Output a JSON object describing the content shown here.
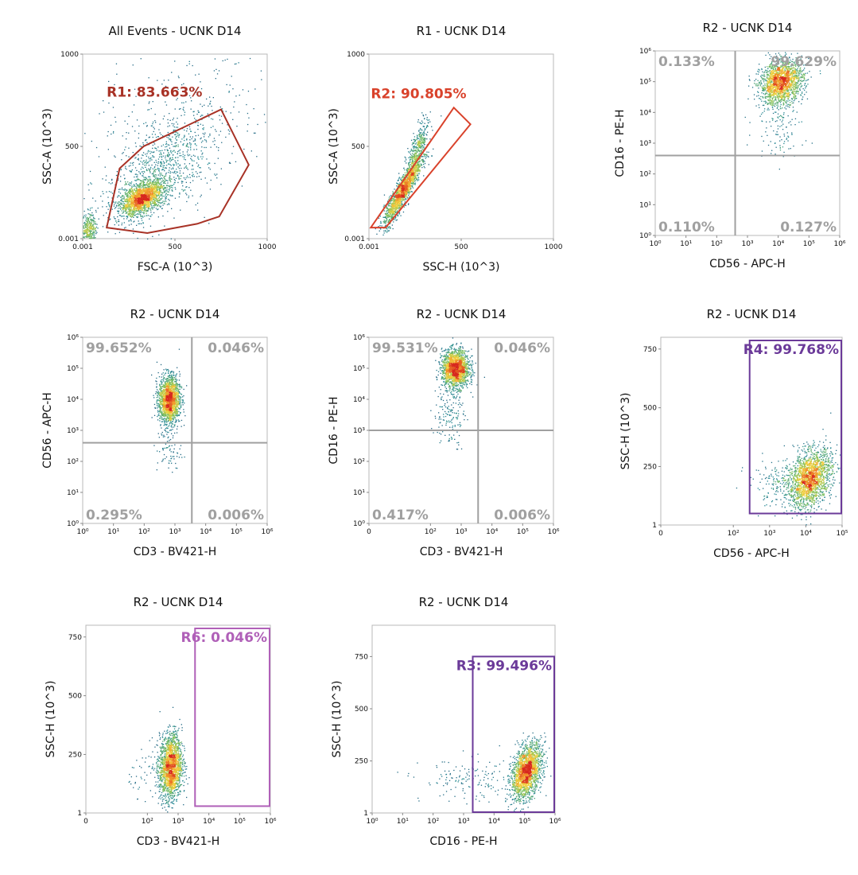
{
  "chart_data": [
    {
      "type": "scatter",
      "title": "All Events - UCNK D14",
      "xlabel": "FSC-A (10^3)",
      "ylabel": "SSC-A (10^3)",
      "xscale": "linear",
      "yscale": "linear",
      "xlim": [
        0.001,
        1000
      ],
      "ylim": [
        0.001,
        1000
      ],
      "xticks": [
        {
          "v": 0.001,
          "label": "0.001"
        },
        {
          "v": 500,
          "label": "500"
        },
        {
          "v": 1000,
          "label": "1000"
        }
      ],
      "yticks": [
        {
          "v": 0.001,
          "label": "0.001"
        },
        {
          "v": 500,
          "label": "500"
        },
        {
          "v": 1000,
          "label": "1000"
        }
      ],
      "clusters": [
        {
          "cx": 320,
          "cy": 220,
          "sx": 60,
          "sy": 45,
          "rho": 0.5,
          "n": 1700
        },
        {
          "cx": 400,
          "cy": 360,
          "sx": 150,
          "sy": 150,
          "rho": 0.6,
          "n": 900
        },
        {
          "cx": 30,
          "cy": 60,
          "sx": 20,
          "sy": 40,
          "rho": 0,
          "n": 300
        },
        {
          "cx": 550,
          "cy": 600,
          "sx": 250,
          "sy": 250,
          "rho": 0.3,
          "n": 350
        }
      ],
      "gates": [
        {
          "shape": "polygon",
          "label": "R1: 83.663%",
          "color": "#a83226",
          "points": [
            [
              130,
              60
            ],
            [
              350,
              30
            ],
            [
              620,
              80
            ],
            [
              740,
              120
            ],
            [
              900,
              400
            ],
            [
              750,
              700
            ],
            [
              330,
              500
            ],
            [
              200,
              380
            ]
          ],
          "label_at": [
            130,
            770
          ]
        }
      ]
    },
    {
      "type": "scatter",
      "title": "R1 - UCNK D14",
      "xlabel": "SSC-H (10^3)",
      "ylabel": "SSC-A (10^3)",
      "xscale": "linear",
      "yscale": "linear",
      "xlim": [
        0.001,
        1000
      ],
      "ylim": [
        0.001,
        1000
      ],
      "xticks": [
        {
          "v": 0.001,
          "label": "0.001"
        },
        {
          "v": 500,
          "label": "500"
        },
        {
          "v": 1000,
          "label": "1000"
        }
      ],
      "yticks": [
        {
          "v": 0.001,
          "label": "0.001"
        },
        {
          "v": 500,
          "label": "500"
        },
        {
          "v": 1000,
          "label": "1000"
        }
      ],
      "clusters": [
        {
          "cx": 180,
          "cy": 260,
          "sx": 50,
          "sy": 90,
          "rho": 0.9,
          "n": 1600
        },
        {
          "cx": 260,
          "cy": 480,
          "sx": 30,
          "sy": 80,
          "rho": 0.7,
          "n": 400
        }
      ],
      "gates": [
        {
          "shape": "polygon",
          "label": "R2: 90.805%",
          "color": "#d9422b",
          "points": [
            [
              10,
              60
            ],
            [
              90,
              60
            ],
            [
              550,
              620
            ],
            [
              460,
              710
            ]
          ],
          "label_at": [
            10,
            760
          ]
        }
      ]
    },
    {
      "type": "scatter",
      "title": "R2 - UCNK D14",
      "xlabel": "CD56 - APC-H",
      "ylabel": "CD16 - PE-H",
      "xscale": "log",
      "yscale": "log",
      "xlim": [
        0,
        6
      ],
      "ylim": [
        0,
        6
      ],
      "xticks": [
        {
          "v": 0,
          "label": "10⁰"
        },
        {
          "v": 1,
          "label": "10¹"
        },
        {
          "v": 2,
          "label": "10²"
        },
        {
          "v": 3,
          "label": "10³"
        },
        {
          "v": 4,
          "label": "10⁴"
        },
        {
          "v": 5,
          "label": "10⁵"
        },
        {
          "v": 6,
          "label": "10⁶"
        }
      ],
      "yticks": [
        {
          "v": 0,
          "label": "10⁰"
        },
        {
          "v": 1,
          "label": "10¹"
        },
        {
          "v": 2,
          "label": "10²"
        },
        {
          "v": 3,
          "label": "10³"
        },
        {
          "v": 4,
          "label": "10⁴"
        },
        {
          "v": 5,
          "label": "10⁵"
        },
        {
          "v": 6,
          "label": "10⁶"
        }
      ],
      "clusters": [
        {
          "cx": 4.1,
          "cy": 5.0,
          "sx": 0.35,
          "sy": 0.35,
          "rho": 0.2,
          "n": 1800
        },
        {
          "cx": 4.0,
          "cy": 3.6,
          "sx": 0.4,
          "sy": 0.5,
          "rho": 0,
          "n": 120
        }
      ],
      "quadrant": {
        "x": 2.6,
        "y": 2.6,
        "color": "#a0a0a0",
        "labels": {
          "ul": "0.133%",
          "ur": "99.629%",
          "ll": "0.110%",
          "lr": "0.127%"
        }
      },
      "gates": []
    },
    {
      "type": "scatter",
      "title": "R2 - UCNK D14",
      "xlabel": "CD3 - BV421-H",
      "ylabel": "CD56 - APC-H",
      "xscale": "log",
      "yscale": "log",
      "xlim": [
        0,
        6
      ],
      "ylim": [
        0,
        6
      ],
      "xticks": [
        {
          "v": 0,
          "label": "10⁰"
        },
        {
          "v": 1,
          "label": "10¹"
        },
        {
          "v": 2,
          "label": "10²"
        },
        {
          "v": 3,
          "label": "10³"
        },
        {
          "v": 4,
          "label": "10⁴"
        },
        {
          "v": 5,
          "label": "10⁵"
        },
        {
          "v": 6,
          "label": "10⁶"
        }
      ],
      "yticks": [
        {
          "v": 0,
          "label": "10⁰"
        },
        {
          "v": 1,
          "label": "10¹"
        },
        {
          "v": 2,
          "label": "10²"
        },
        {
          "v": 3,
          "label": "10³"
        },
        {
          "v": 4,
          "label": "10⁴"
        },
        {
          "v": 5,
          "label": "10⁵"
        },
        {
          "v": 6,
          "label": "10⁶"
        }
      ],
      "clusters": [
        {
          "cx": 2.8,
          "cy": 4.0,
          "sx": 0.17,
          "sy": 0.38,
          "rho": 0,
          "n": 1800
        },
        {
          "cx": 2.8,
          "cy": 2.4,
          "sx": 0.2,
          "sy": 0.4,
          "rho": 0,
          "n": 80
        }
      ],
      "quadrant": {
        "x": 3.55,
        "y": 2.6,
        "color": "#a0a0a0",
        "labels": {
          "ul": "99.652%",
          "ur": "0.046%",
          "ll": "0.295%",
          "lr": "0.006%"
        }
      },
      "gates": []
    },
    {
      "type": "scatter",
      "title": "R2 - UCNK D14",
      "xlabel": "CD3 - BV421-H",
      "ylabel": "CD16 - PE-H",
      "xscale": "log",
      "yscale": "log",
      "xlim": [
        0,
        6
      ],
      "ylim": [
        0,
        6
      ],
      "xticks": [
        {
          "v": 0,
          "label": "0"
        },
        {
          "v": 2,
          "label": "10²"
        },
        {
          "v": 3,
          "label": "10³"
        },
        {
          "v": 4,
          "label": "10⁴"
        },
        {
          "v": 5,
          "label": "10⁵"
        },
        {
          "v": 6,
          "label": "10⁶"
        }
      ],
      "yticks": [
        {
          "v": 0,
          "label": "10⁰"
        },
        {
          "v": 1,
          "label": "10¹"
        },
        {
          "v": 2,
          "label": "10²"
        },
        {
          "v": 3,
          "label": "10³"
        },
        {
          "v": 4,
          "label": "10⁴"
        },
        {
          "v": 5,
          "label": "10⁵"
        },
        {
          "v": 6,
          "label": "10⁶"
        }
      ],
      "clusters": [
        {
          "cx": 2.8,
          "cy": 5.0,
          "sx": 0.22,
          "sy": 0.3,
          "rho": 0,
          "n": 1800
        },
        {
          "cx": 2.6,
          "cy": 3.5,
          "sx": 0.25,
          "sy": 0.5,
          "rho": 0,
          "n": 150
        }
      ],
      "quadrant": {
        "x": 3.55,
        "y": 3.0,
        "color": "#a0a0a0",
        "labels": {
          "ul": "99.531%",
          "ur": "0.046%",
          "ll": "0.417%",
          "lr": "0.006%"
        }
      },
      "gates": []
    },
    {
      "type": "scatter",
      "title": "R2 - UCNK D14",
      "xlabel": "CD56 - APC-H",
      "ylabel": "SSC-H (10^3)",
      "xscale": "log",
      "yscale": "linear",
      "xlim": [
        0,
        5
      ],
      "ylim": [
        1,
        800
      ],
      "xticks": [
        {
          "v": 0,
          "label": "0"
        },
        {
          "v": 2,
          "label": "10²"
        },
        {
          "v": 3,
          "label": "10³"
        },
        {
          "v": 4,
          "label": "10⁴"
        },
        {
          "v": 5,
          "label": "10⁵"
        }
      ],
      "yticks": [
        {
          "v": 1,
          "label": "1"
        },
        {
          "v": 250,
          "label": "250"
        },
        {
          "v": 500,
          "label": "500"
        },
        {
          "v": 750,
          "label": "750"
        }
      ],
      "clusters": [
        {
          "cx": 4.1,
          "cy": 200,
          "sx": 0.3,
          "sy": 60,
          "rho": 0.3,
          "n": 1900
        },
        {
          "cx": 3.2,
          "cy": 180,
          "sx": 0.4,
          "sy": 50,
          "rho": 0,
          "n": 150
        }
      ],
      "gates": [
        {
          "shape": "rect",
          "label": "R4: 99.768%",
          "color": "#6b3a99",
          "x0": 2.45,
          "x1": 5,
          "y0": 50,
          "y1": 830,
          "label_at": "top-right"
        }
      ]
    },
    {
      "type": "scatter",
      "title": "R2 - UCNK D14",
      "xlabel": "CD3 - BV421-H",
      "ylabel": "SSC-H (10^3)",
      "xscale": "log",
      "yscale": "linear",
      "xlim": [
        0,
        6
      ],
      "ylim": [
        1,
        800
      ],
      "xticks": [
        {
          "v": 0,
          "label": "0"
        },
        {
          "v": 2,
          "label": "10²"
        },
        {
          "v": 3,
          "label": "10³"
        },
        {
          "v": 4,
          "label": "10⁴"
        },
        {
          "v": 5,
          "label": "10⁵"
        },
        {
          "v": 6,
          "label": "10⁶"
        }
      ],
      "yticks": [
        {
          "v": 1,
          "label": "1"
        },
        {
          "v": 250,
          "label": "250"
        },
        {
          "v": 500,
          "label": "500"
        },
        {
          "v": 750,
          "label": "750"
        }
      ],
      "clusters": [
        {
          "cx": 2.75,
          "cy": 200,
          "sx": 0.18,
          "sy": 70,
          "rho": 0.1,
          "n": 1900
        },
        {
          "cx": 2.2,
          "cy": 180,
          "sx": 0.4,
          "sy": 50,
          "rho": 0,
          "n": 80
        }
      ],
      "gates": [
        {
          "shape": "rect",
          "label": "R6: 0.046%",
          "color": "#b060b8",
          "x0": 3.55,
          "x1": 6,
          "y0": 30,
          "y1": 820,
          "label_at": "top-right"
        }
      ]
    },
    {
      "type": "scatter",
      "title": "R2 - UCNK D14",
      "xlabel": "CD16 - PE-H",
      "ylabel": "SSC-H (10^3)",
      "xscale": "log",
      "yscale": "linear",
      "xlim": [
        0,
        6
      ],
      "ylim": [
        1,
        900
      ],
      "xticks": [
        {
          "v": 0,
          "label": "10⁰"
        },
        {
          "v": 1,
          "label": "10¹"
        },
        {
          "v": 2,
          "label": "10²"
        },
        {
          "v": 3,
          "label": "10³"
        },
        {
          "v": 4,
          "label": "10⁴"
        },
        {
          "v": 5,
          "label": "10⁵"
        },
        {
          "v": 6,
          "label": "10⁶"
        }
      ],
      "yticks": [
        {
          "v": 1,
          "label": "1"
        },
        {
          "v": 250,
          "label": "250"
        },
        {
          "v": 500,
          "label": "500"
        },
        {
          "v": 750,
          "label": "750"
        }
      ],
      "clusters": [
        {
          "cx": 5.05,
          "cy": 200,
          "sx": 0.25,
          "sy": 65,
          "rho": 0.4,
          "n": 1900
        },
        {
          "cx": 3.2,
          "cy": 160,
          "sx": 0.8,
          "sy": 50,
          "rho": 0,
          "n": 150
        }
      ],
      "gates": [
        {
          "shape": "rect",
          "label": "R3: 99.496%",
          "color": "#6b3a99",
          "x0": 3.3,
          "x1": 6,
          "y0": 1,
          "y1": 750,
          "label_at": "top-right"
        }
      ]
    }
  ]
}
